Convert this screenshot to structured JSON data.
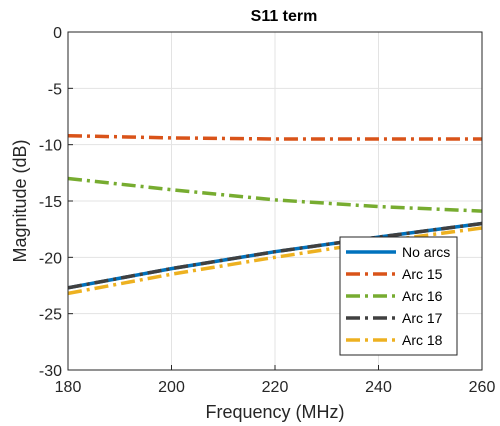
{
  "chart_data": {
    "type": "line",
    "title": "S11 term",
    "xlabel": "Frequency (MHz)",
    "ylabel": "Magnitude (dB)",
    "xlim": [
      180,
      260
    ],
    "ylim": [
      -30,
      0
    ],
    "xticks": [
      180,
      200,
      220,
      240,
      260
    ],
    "yticks": [
      0,
      -5,
      -10,
      -15,
      -20,
      -25,
      -30
    ],
    "grid": true,
    "legend_position": "lower-right",
    "series": [
      {
        "name": "No arcs",
        "color": "#0072BD",
        "dash": "solid",
        "x": [
          180,
          200,
          220,
          240,
          260
        ],
        "y": [
          -22.7,
          -21.0,
          -19.5,
          -18.2,
          -17.0
        ]
      },
      {
        "name": "Arc 15",
        "color": "#D95319",
        "dash": "dashdot",
        "x": [
          180,
          200,
          220,
          240,
          260
        ],
        "y": [
          -9.2,
          -9.4,
          -9.5,
          -9.5,
          -9.5
        ]
      },
      {
        "name": "Arc 16",
        "color": "#77AC30",
        "dash": "dashdot",
        "x": [
          180,
          200,
          220,
          240,
          260
        ],
        "y": [
          -13.0,
          -14.0,
          -14.9,
          -15.5,
          -15.9
        ]
      },
      {
        "name": "Arc 17",
        "color": "#404040",
        "dash": "dashdot",
        "x": [
          180,
          200,
          220,
          240,
          260
        ],
        "y": [
          -22.7,
          -21.0,
          -19.5,
          -18.2,
          -17.0
        ]
      },
      {
        "name": "Arc 18",
        "color": "#EDB120",
        "dash": "dashdot",
        "x": [
          180,
          200,
          220,
          240,
          260
        ],
        "y": [
          -23.2,
          -21.5,
          -20.0,
          -18.6,
          -17.4
        ]
      }
    ]
  }
}
